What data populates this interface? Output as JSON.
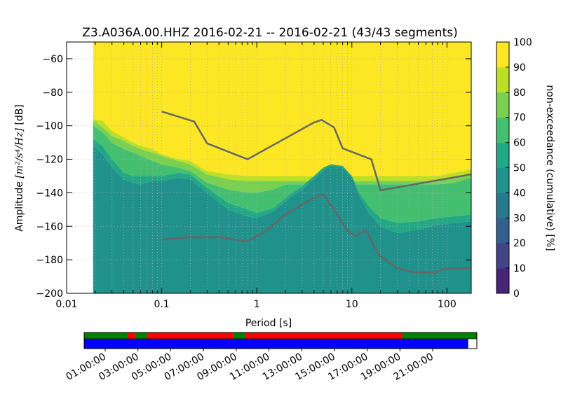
{
  "chart_data": {
    "type": "heatmap",
    "title": "Z3.A036A.00.HHZ   2016-02-21 -- 2016-02-21  (43/43 segments)",
    "xlabel": "Period [s]",
    "ylabel_prefix": "Amplitude ",
    "ylabel_math": "[m²/s⁴/Hz]",
    "ylabel_suffix": " [dB]",
    "x_scale": "log",
    "xlim": [
      0.01,
      180
    ],
    "ylim": [
      -200,
      -50
    ],
    "x_ticks": [
      {
        "value": 0.01,
        "label": "0.01"
      },
      {
        "value": 0.1,
        "label": "0.1"
      },
      {
        "value": 1,
        "label": "1"
      },
      {
        "value": 10,
        "label": "10"
      },
      {
        "value": 100,
        "label": "100"
      }
    ],
    "y_ticks": [
      {
        "value": -60,
        "label": "−60"
      },
      {
        "value": -80,
        "label": "−80"
      },
      {
        "value": -100,
        "label": "−100"
      },
      {
        "value": -120,
        "label": "−120"
      },
      {
        "value": -140,
        "label": "−140"
      },
      {
        "value": -160,
        "label": "−160"
      },
      {
        "value": -180,
        "label": "−180"
      },
      {
        "value": -200,
        "label": "−200"
      }
    ],
    "grid": true,
    "data_period_start": 0.019,
    "colorbar": {
      "label": "non-exceedance (cumulative) [%]",
      "ticks": [
        "0",
        "10",
        "20",
        "30",
        "40",
        "50",
        "60",
        "70",
        "80",
        "90",
        "100"
      ],
      "colors": [
        "#440154",
        "#482475",
        "#414487",
        "#355f8d",
        "#2a788e",
        "#21918c",
        "#22a884",
        "#44bf70",
        "#7ad151",
        "#bddf26",
        "#fde725"
      ]
    },
    "percentile_regions": [
      {
        "level": 100,
        "color": "#fde725"
      },
      {
        "level": 90,
        "color": "#bddf26"
      },
      {
        "level": 80,
        "color": "#7ad151"
      },
      {
        "level": 70,
        "color": "#44bf70"
      },
      {
        "level": 60,
        "color": "#22a884"
      },
      {
        "level": 50,
        "color": "#21918c"
      },
      {
        "level": 40,
        "color": "#2a788e"
      }
    ],
    "region_boundaries": {
      "periods": [
        0.019,
        0.024,
        0.03,
        0.04,
        0.05,
        0.06,
        0.08,
        0.1,
        0.15,
        0.2,
        0.3,
        0.5,
        0.8,
        1.0,
        1.5,
        2,
        3,
        4,
        5,
        6,
        8,
        10,
        12,
        15,
        20,
        30,
        50,
        80,
        120,
        180
      ],
      "100_to_90": [
        -96,
        -97,
        -103,
        -107,
        -110,
        -112,
        -114,
        -117,
        -120,
        -121,
        -127,
        -129,
        -130,
        -130,
        -130,
        -130,
        -130,
        -130,
        -130,
        -130,
        -130,
        -130,
        -130,
        -130,
        -130,
        -130,
        -130,
        -130,
        -128,
        -126
      ],
      "90_to_80": [
        -97,
        -101,
        -106,
        -109,
        -112,
        -114,
        -116,
        -118,
        -121,
        -123,
        -129,
        -132,
        -133,
        -133,
        -133,
        -133,
        -133,
        -133,
        -133,
        -133,
        -133,
        -133,
        -133,
        -133,
        -133,
        -133,
        -133,
        -133,
        -131,
        -128
      ],
      "80_to_70": [
        -100,
        -104,
        -110,
        -114,
        -116,
        -118,
        -121,
        -123,
        -125,
        -127,
        -134,
        -138,
        -140,
        -140,
        -138,
        -135,
        -135,
        -135,
        -135,
        -135,
        -135,
        -135,
        -135,
        -135,
        -135,
        -135,
        -135,
        -135,
        -134,
        -131
      ],
      "70_to_60": [
        -108,
        -112,
        -120,
        -128,
        -130,
        -130,
        -130,
        -130,
        -128,
        -129,
        -137,
        -146,
        -150,
        -152,
        -149,
        -143,
        -136,
        -130,
        -125,
        -123,
        -124,
        -130,
        -140,
        -148,
        -155,
        -158,
        -157,
        -155,
        -154,
        -153
      ],
      "60_to_50": [
        -112,
        -117,
        -125,
        -132,
        -134,
        -135,
        -133,
        -133,
        -131,
        -132,
        -140,
        -150,
        -154,
        -155,
        -151,
        -145,
        -138,
        -132,
        -127,
        -124,
        -125,
        -131,
        -142,
        -152,
        -160,
        -164,
        -162,
        -159,
        -158,
        -157
      ]
    },
    "series": [
      {
        "name": "",
        "color": "#666666",
        "x": [
          0.1,
          0.22,
          0.3,
          0.8,
          4.0,
          4.8,
          6.5,
          8.0,
          16,
          20,
          180
        ],
        "y": [
          -91.5,
          -97.5,
          -110.5,
          -120,
          -98,
          -96.5,
          -101,
          -113.5,
          -120,
          -138.5,
          -129
        ]
      },
      {
        "name": "",
        "color": "#666666",
        "x": [
          0.1,
          0.2,
          0.4,
          0.8,
          1.2,
          2.0,
          3.0,
          4.0,
          5.0,
          6.5,
          9.0,
          11,
          14,
          19,
          30,
          45,
          75,
          100,
          180
        ],
        "y": [
          -168,
          -166.5,
          -166.5,
          -169,
          -163.5,
          -153,
          -147,
          -143,
          -141,
          -150,
          -163,
          -166,
          -162,
          -177,
          -185,
          -187.5,
          -187.5,
          -185,
          -185
        ]
      }
    ]
  },
  "timeline": {
    "tick_labels": [
      "01:00:00",
      "03:00:00",
      "05:00:00",
      "07:00:00",
      "09:00:00",
      "11:00:00",
      "13:00:00",
      "15:00:00",
      "17:00:00",
      "19:00:00",
      "21:00:00"
    ],
    "top_bar_segments": [
      {
        "start": 0.0,
        "end": 0.11,
        "color": "#008000"
      },
      {
        "start": 0.11,
        "end": 0.13,
        "color": "#ff0000"
      },
      {
        "start": 0.13,
        "end": 0.16,
        "color": "#008000"
      },
      {
        "start": 0.16,
        "end": 0.38,
        "color": "#ff0000"
      },
      {
        "start": 0.38,
        "end": 0.41,
        "color": "#008000"
      },
      {
        "start": 0.41,
        "end": 0.81,
        "color": "#ff0000"
      },
      {
        "start": 0.81,
        "end": 1.0,
        "color": "#008000"
      }
    ],
    "bottom_bar_segments": [
      {
        "start": 0.0,
        "end": 0.978,
        "color": "#0000ff"
      }
    ]
  }
}
